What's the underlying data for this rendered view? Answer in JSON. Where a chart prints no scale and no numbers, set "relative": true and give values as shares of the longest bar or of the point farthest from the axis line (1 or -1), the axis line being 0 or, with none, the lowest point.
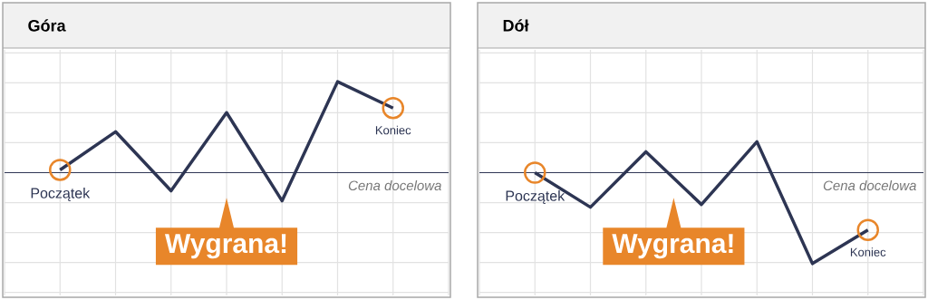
{
  "chart_data": [
    {
      "type": "line",
      "title": "Góra",
      "categories": [
        null,
        null,
        null,
        null,
        null,
        null,
        null
      ],
      "relative": true,
      "values": [
        0.03,
        0.45,
        -0.2,
        0.66,
        -0.31,
        1,
        0.71
      ],
      "color": "#2d3553",
      "grid": true,
      "ref_lines": [
        {
          "axis": "y",
          "value": 0,
          "label": "Cena docelowa",
          "color": "#2d3553"
        }
      ],
      "annotations": [
        "Początek",
        "Koniec",
        "Wygrana!"
      ]
    },
    {
      "type": "line",
      "title": "Dół",
      "categories": [
        null,
        null,
        null,
        null,
        null,
        null,
        null
      ],
      "relative": true,
      "values": [
        0,
        -0.38,
        0.23,
        -0.35,
        0.34,
        -1,
        -0.63
      ],
      "color": "#2d3553",
      "grid": true,
      "ref_lines": [
        {
          "axis": "y",
          "value": 0,
          "label": "Cena docelowa",
          "color": "#2d3553"
        }
      ],
      "annotations": [
        "Początek",
        "Koniec",
        "Wygrana!"
      ]
    }
  ]
}
